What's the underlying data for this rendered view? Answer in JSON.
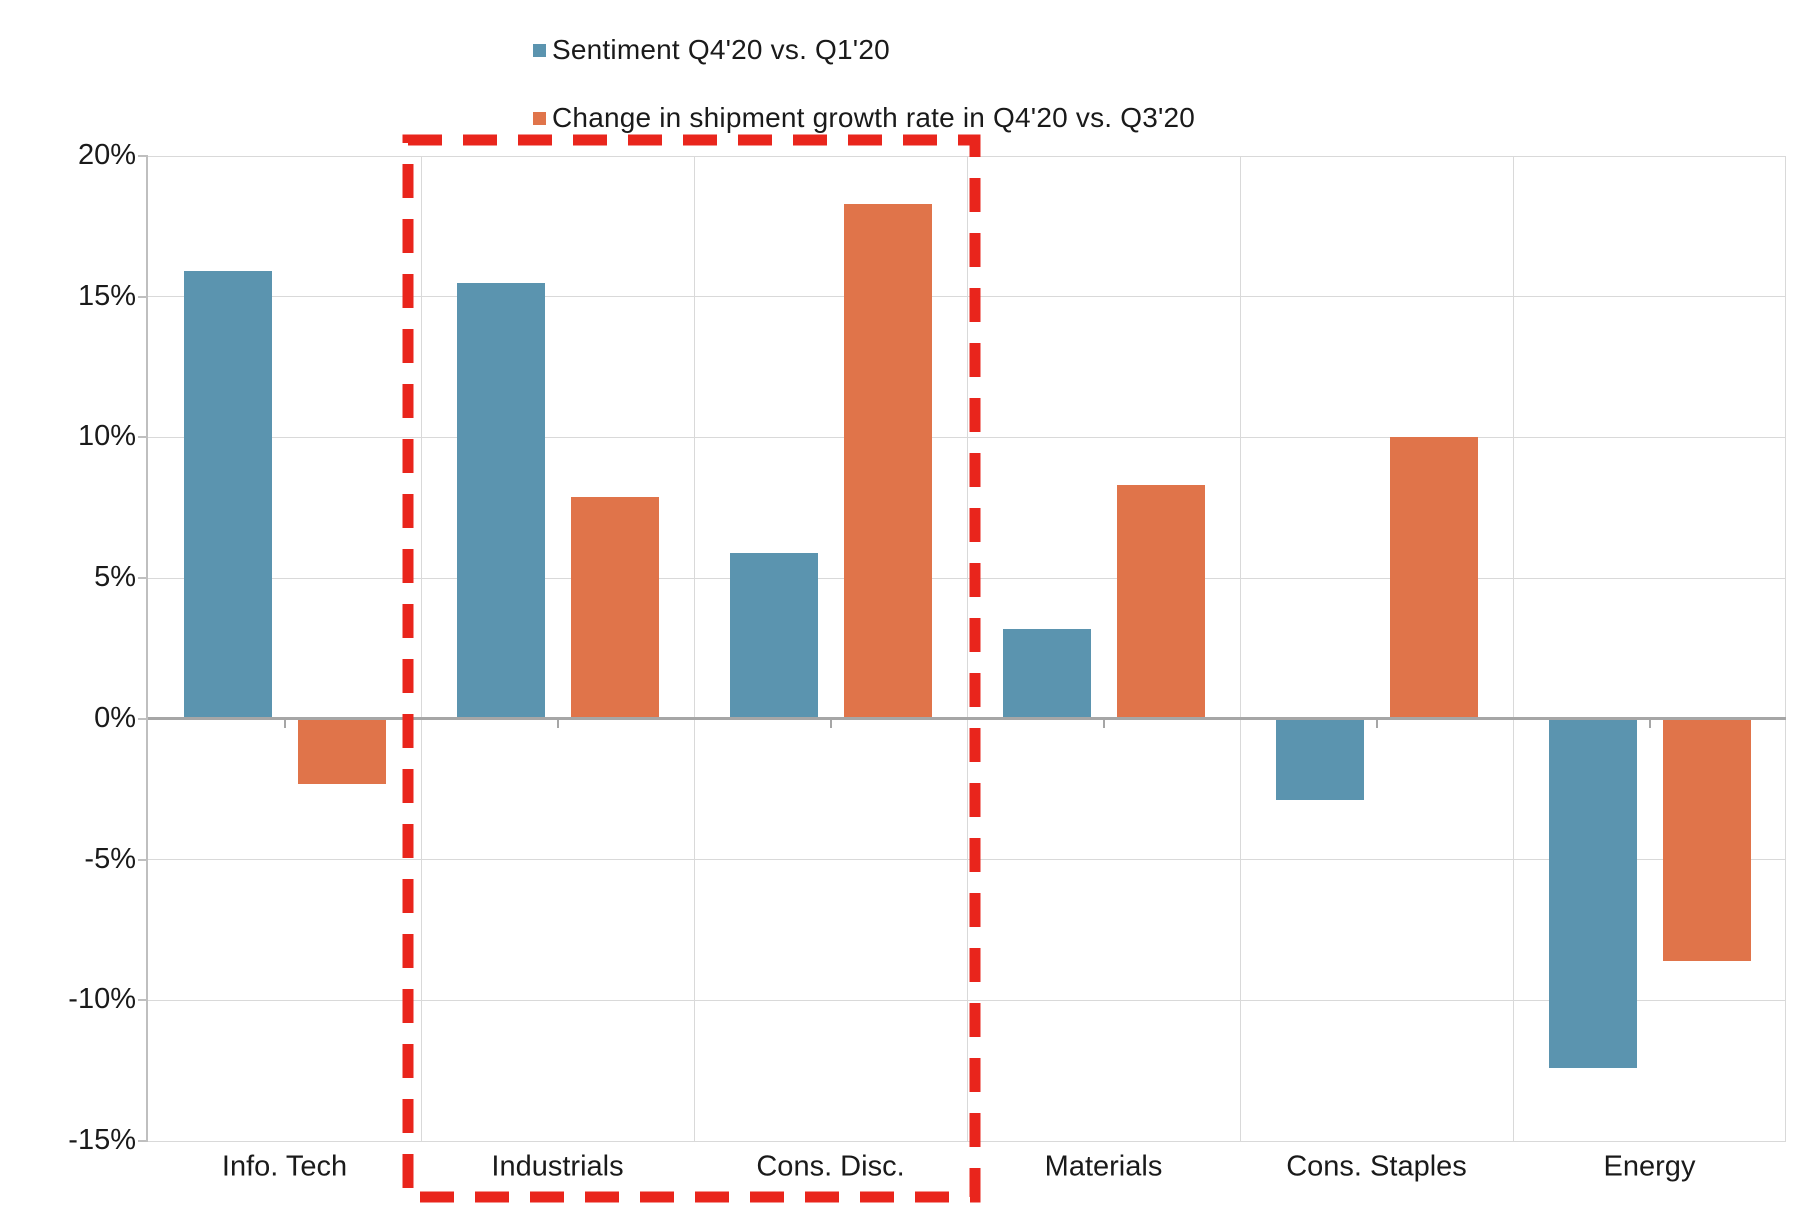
{
  "colors": {
    "sentiment_bar": "#5B94AF",
    "shipment_bar": "#E0744A",
    "highlight_box": "#E9251C",
    "gridline": "#D9D9D9",
    "zero_axis": "#A6A6A6",
    "axis_line": "#BFBFBF",
    "text": "#1A1A1A",
    "background": "#FFFFFF"
  },
  "legend": {
    "items": [
      {
        "label": "Sentiment Q4'20 vs. Q1'20",
        "swatch_color": "#5B94AF"
      },
      {
        "label": "Change in shipment growth rate in Q4'20 vs. Q3'20",
        "swatch_color": "#E0744A"
      }
    ]
  },
  "chart_data": {
    "type": "bar",
    "categories": [
      "Info. Tech",
      "Industrials",
      "Cons. Disc.",
      "Materials",
      "Cons. Staples",
      "Energy"
    ],
    "series": [
      {
        "name": "Sentiment Q4'20 vs. Q1'20",
        "color": "#5B94AF",
        "values": [
          15.9,
          15.5,
          5.9,
          3.2,
          -2.9,
          -12.4
        ]
      },
      {
        "name": "Change in shipment growth rate in Q4'20 vs. Q3'20",
        "color": "#E0744A",
        "values": [
          -2.3,
          7.9,
          18.3,
          8.3,
          10.0,
          -8.6
        ]
      }
    ],
    "ylim": [
      -15,
      20
    ],
    "ytick_step": 5,
    "ytick_labels": [
      "20%",
      "15%",
      "10%",
      "5%",
      "0%",
      "-5%",
      "-10%",
      "-15%"
    ],
    "grid": true,
    "legend_position": "top",
    "highlight": {
      "type": "dashed-box",
      "categories": [
        "Industrials",
        "Cons. Disc."
      ],
      "from_index": 1,
      "to_index": 2,
      "color": "#E9251C"
    }
  }
}
